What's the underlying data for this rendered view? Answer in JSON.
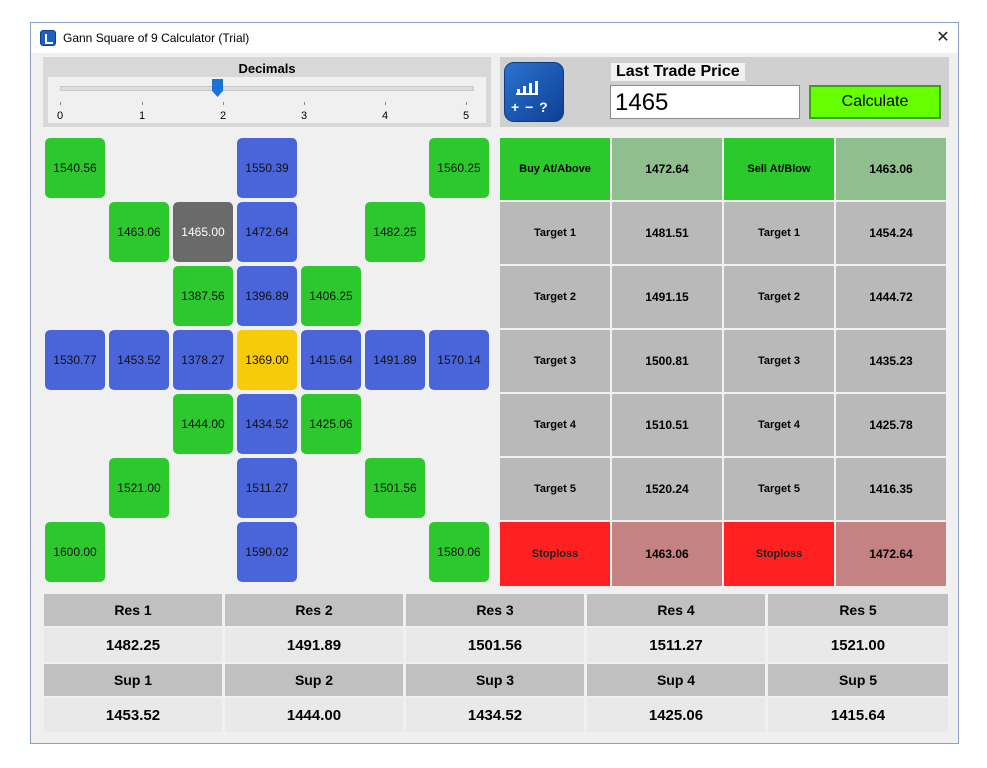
{
  "window": {
    "title": "Gann Square of 9 Calculator (Trial)",
    "close_glyph": "✕"
  },
  "decimals": {
    "label": "Decimals",
    "ticks": [
      "0",
      "1",
      "2",
      "3",
      "4",
      "5"
    ],
    "value": 2
  },
  "ltp": {
    "label": "Last Trade Price",
    "value": "1465",
    "calc_label": "Calculate",
    "logo_ops": "+ − ?"
  },
  "grid": {
    "r0": [
      "1540.56",
      "1550.39",
      "1560.25"
    ],
    "r1": [
      "1463.06",
      "1465.00",
      "1472.64",
      "1482.25"
    ],
    "r2": [
      "1387.56",
      "1396.89",
      "1406.25"
    ],
    "r3": [
      "1530.77",
      "1453.52",
      "1378.27",
      "1369.00",
      "1415.64",
      "1491.89",
      "1570.14"
    ],
    "r4": [
      "1444.00",
      "1434.52",
      "1425.06"
    ],
    "r5": [
      "1521.00",
      "1511.27",
      "1501.56"
    ],
    "r6": [
      "1600.00",
      "1590.02",
      "1580.06"
    ]
  },
  "targets": {
    "buy_label": "Buy At/Above",
    "buy_value": "1472.64",
    "sell_label": "Sell At/Blow",
    "sell_value": "1463.06",
    "rows": [
      {
        "left_label": "Target 1",
        "left_value": "1481.51",
        "right_label": "Target 1",
        "right_value": "1454.24"
      },
      {
        "left_label": "Target 2",
        "left_value": "1491.15",
        "right_label": "Target 2",
        "right_value": "1444.72"
      },
      {
        "left_label": "Target 3",
        "left_value": "1500.81",
        "right_label": "Target 3",
        "right_value": "1435.23"
      },
      {
        "left_label": "Target 4",
        "left_value": "1510.51",
        "right_label": "Target 4",
        "right_value": "1425.78"
      },
      {
        "left_label": "Target 5",
        "left_value": "1520.24",
        "right_label": "Target 5",
        "right_value": "1416.35"
      }
    ],
    "stop_left_label": "Stoploss",
    "stop_left_value": "1463.06",
    "stop_right_label": "Stoploss",
    "stop_right_value": "1472.64"
  },
  "levels": {
    "res_labels": [
      "Res 1",
      "Res 2",
      "Res 3",
      "Res 4",
      "Res 5"
    ],
    "res_values": [
      "1482.25",
      "1491.89",
      "1501.56",
      "1511.27",
      "1521.00"
    ],
    "sup_labels": [
      "Sup 1",
      "Sup 2",
      "Sup 3",
      "Sup 4",
      "Sup 5"
    ],
    "sup_values": [
      "1453.52",
      "1444.00",
      "1434.52",
      "1425.06",
      "1415.64"
    ]
  },
  "colors": {
    "green": "#2dc82d",
    "blue": "#4a65d9",
    "yellow": "#f7cb0a",
    "dark": "#6a6a6a",
    "red": "#ff2121",
    "calc": "#66ff00"
  }
}
